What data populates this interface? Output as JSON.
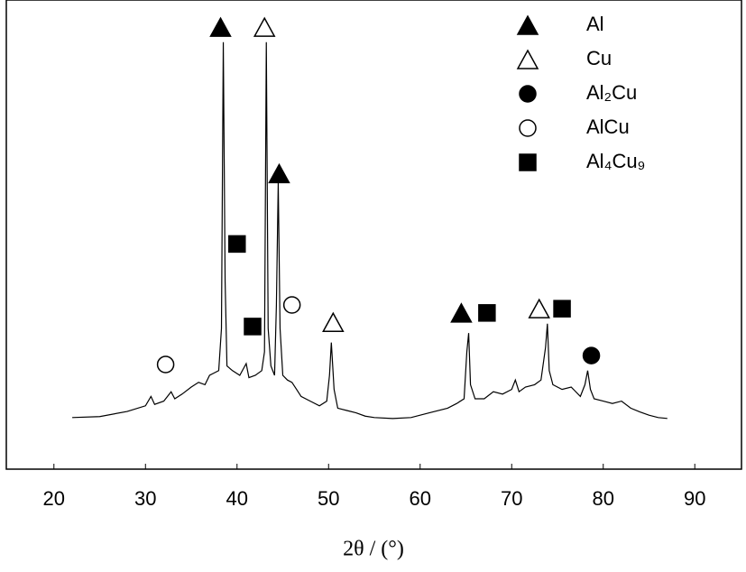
{
  "chart_data": {
    "type": "line",
    "x_label": "2θ / (°)",
    "x": [
      22,
      25,
      28,
      30,
      30.6,
      31,
      32,
      32.8,
      33.2,
      34,
      35,
      35.8,
      36.5,
      37,
      37.5,
      38,
      38.3,
      38.5,
      38.7,
      38.9,
      39.5,
      40.3,
      41,
      41.3,
      42,
      42.7,
      43,
      43.2,
      43.4,
      43.7,
      44.1,
      44.3,
      44.5,
      44.7,
      45,
      45.5,
      46,
      46.5,
      47,
      48,
      49,
      49.8,
      50.1,
      50.3,
      50.6,
      51,
      52,
      53,
      54,
      55,
      57,
      59,
      61,
      63,
      64,
      64.8,
      65.1,
      65.3,
      65.5,
      66,
      67,
      68,
      69,
      70,
      70.4,
      70.8,
      71.5,
      72.5,
      73.2,
      73.7,
      73.9,
      74.1,
      74.5,
      75.5,
      76.5,
      77.5,
      78,
      78.3,
      78.6,
      79,
      80,
      81,
      82,
      83,
      84,
      85,
      86,
      87
    ],
    "values": [
      11,
      11.2,
      12.3,
      13.5,
      15.5,
      13.8,
      14.5,
      16.5,
      15,
      16,
      17.5,
      18.5,
      18,
      20,
      20.5,
      21,
      30,
      91,
      40,
      22,
      21,
      20,
      22.5,
      19.5,
      20,
      21,
      25,
      91,
      30,
      22,
      20,
      35,
      61,
      30,
      20,
      19,
      18.5,
      17,
      15.5,
      14.5,
      13.5,
      14.5,
      20,
      27,
      17,
      13,
      12.5,
      12,
      11.3,
      11,
      10.8,
      11,
      12,
      13,
      14,
      15,
      25,
      29,
      18,
      15,
      15,
      16.5,
      16,
      17,
      19,
      16.5,
      17.5,
      18,
      19,
      26,
      31,
      21,
      18,
      17,
      17.5,
      15.5,
      18,
      21,
      17,
      15,
      14.5,
      14,
      14.5,
      13,
      12.2,
      11.5,
      11,
      10.8
    ],
    "color": "#000000",
    "xlim": [
      14.8,
      95.1
    ],
    "xticks": [
      20,
      30,
      40,
      50,
      60,
      70,
      80,
      90
    ],
    "ylim": [
      0,
      100
    ],
    "legend_position": "top-right",
    "phases": [
      {
        "name": "Al",
        "symbol": "triangle",
        "filled": true
      },
      {
        "name": "Cu",
        "symbol": "triangle",
        "filled": false
      },
      {
        "name": "Al₂Cu",
        "symbol": "circle",
        "filled": true
      },
      {
        "name": "AlCu",
        "symbol": "circle",
        "filled": false
      },
      {
        "name": "Al₄Cu₉",
        "symbol": "square",
        "filled": true
      }
    ],
    "markers": [
      {
        "phase": 0,
        "x": 38.2,
        "y": 94.2
      },
      {
        "phase": 1,
        "x": 43.0,
        "y": 94.2
      },
      {
        "phase": 0,
        "x": 44.6,
        "y": 63
      },
      {
        "phase": 4,
        "x": 40.0,
        "y": 48
      },
      {
        "phase": 4,
        "x": 41.7,
        "y": 30.4
      },
      {
        "phase": 3,
        "x": 46.0,
        "y": 35
      },
      {
        "phase": 1,
        "x": 50.5,
        "y": 31.3
      },
      {
        "phase": 3,
        "x": 32.2,
        "y": 22.3
      },
      {
        "phase": 0,
        "x": 64.5,
        "y": 33.3
      },
      {
        "phase": 4,
        "x": 67.3,
        "y": 33.3
      },
      {
        "phase": 1,
        "x": 73.0,
        "y": 34.2
      },
      {
        "phase": 4,
        "x": 75.5,
        "y": 34.2
      },
      {
        "phase": 2,
        "x": 78.7,
        "y": 24.2
      }
    ]
  }
}
